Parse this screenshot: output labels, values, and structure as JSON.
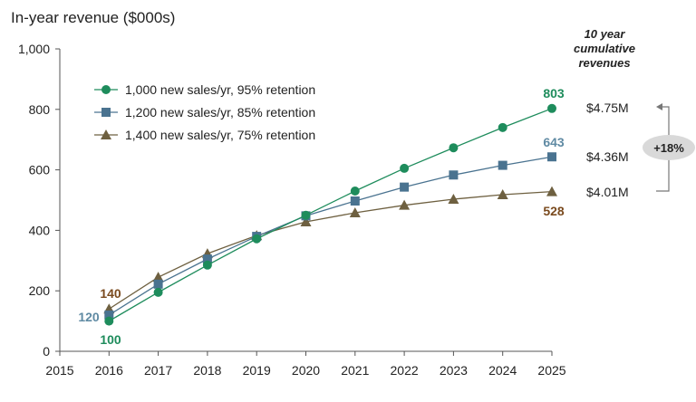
{
  "chart_data": {
    "type": "line",
    "title": "In-year revenue ($000s)",
    "xlabel": "",
    "ylabel": "",
    "x_ticks": [
      "2015",
      "2016",
      "2017",
      "2018",
      "2019",
      "2020",
      "2021",
      "2022",
      "2023",
      "2024",
      "2025"
    ],
    "xlim": [
      2015,
      2025
    ],
    "y_ticks": [
      "0",
      "200",
      "400",
      "600",
      "800",
      "1,000"
    ],
    "ylim": [
      0,
      1000
    ],
    "grid": false,
    "legend_position": "top-left",
    "series": [
      {
        "name": "1,000 new sales/yr, 95% retention",
        "color": "#1e8c5c",
        "marker": "circle",
        "x": [
          2016,
          2017,
          2018,
          2019,
          2020,
          2021,
          2022,
          2023,
          2024,
          2025
        ],
        "values": [
          100,
          195,
          285,
          372,
          450,
          530,
          605,
          673,
          740,
          803
        ],
        "start_label": "100",
        "end_label": "803"
      },
      {
        "name": "1,200 new sales/yr, 85% retention",
        "color": "#4a7390",
        "marker": "square",
        "x": [
          2016,
          2017,
          2018,
          2019,
          2020,
          2021,
          2022,
          2023,
          2024,
          2025
        ],
        "values": [
          120,
          222,
          305,
          380,
          448,
          497,
          543,
          583,
          615,
          643
        ],
        "start_label": "120",
        "end_label": "643"
      },
      {
        "name": "1,400 new sales/yr, 75% retention",
        "color": "#6e6040",
        "marker": "triangle",
        "x": [
          2016,
          2017,
          2018,
          2019,
          2020,
          2021,
          2022,
          2023,
          2024,
          2025
        ],
        "values": [
          140,
          245,
          323,
          383,
          428,
          458,
          483,
          503,
          518,
          528
        ],
        "start_label": "140",
        "end_label": "528"
      }
    ],
    "label_colors": {
      "s1": "#1e8c5c",
      "s2": "#5f8aa3",
      "s3": "#7a4a1e"
    }
  },
  "cumulative": {
    "header": [
      "10 year",
      "cumulative",
      "revenues"
    ],
    "values": [
      "$4.75M",
      "$4.36M",
      "$4.01M"
    ],
    "badge": "+18%"
  }
}
